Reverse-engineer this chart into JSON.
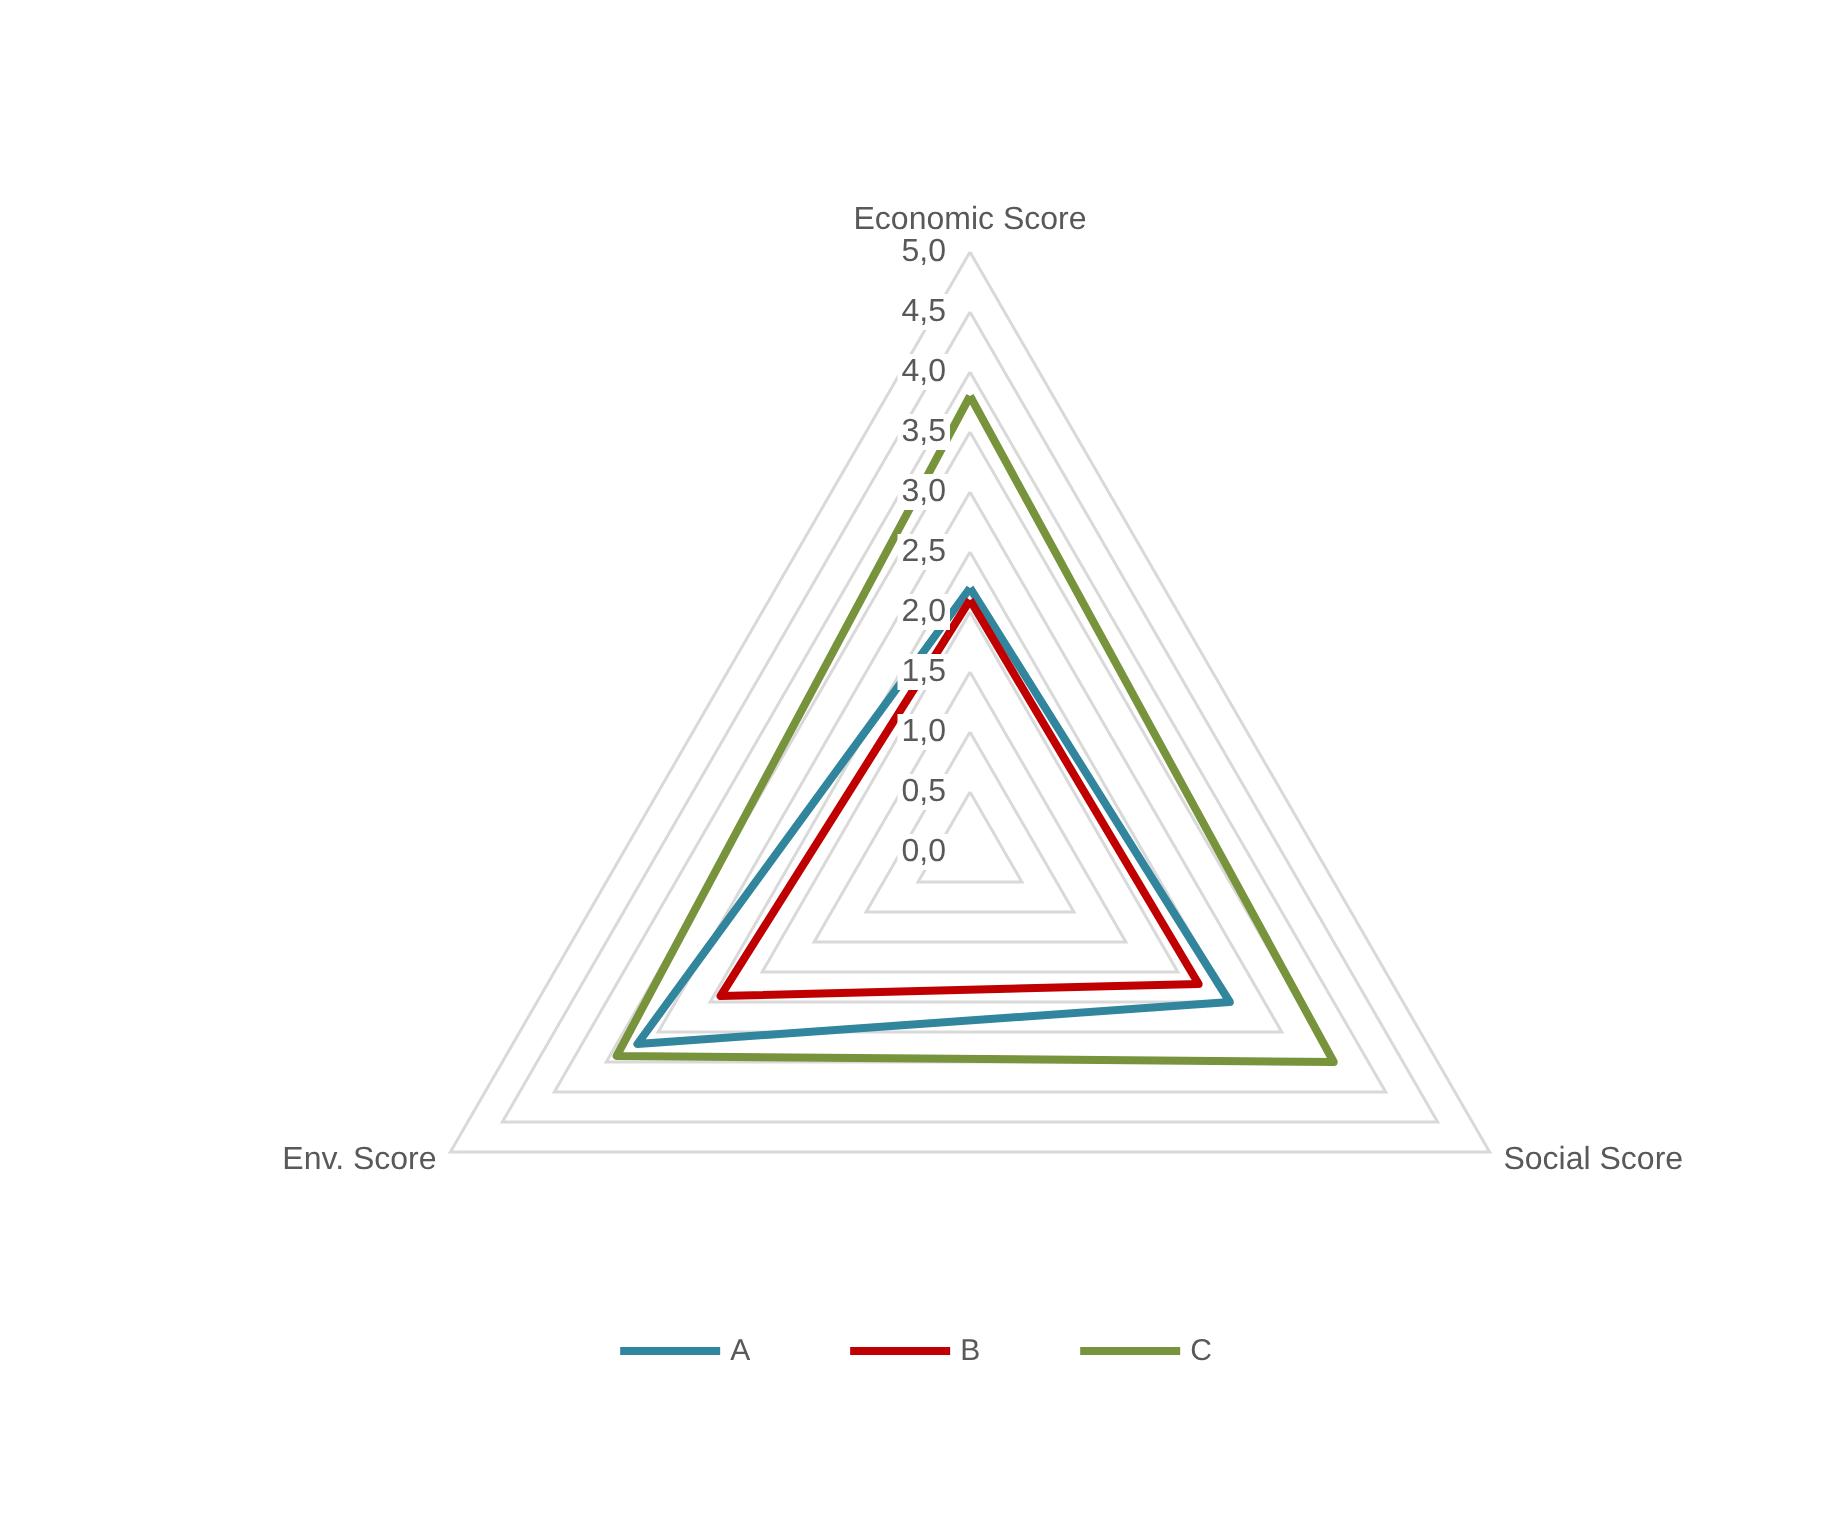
{
  "chart_data": {
    "type": "radar",
    "categories": [
      "Economic Score",
      "Social Score",
      "Env. Score"
    ],
    "ylim": [
      0,
      5
    ],
    "yticks": [
      {
        "value": 0,
        "label": "0,0"
      },
      {
        "value": 0.5,
        "label": "0,5"
      },
      {
        "value": 1,
        "label": "1,0"
      },
      {
        "value": 1.5,
        "label": "1,5"
      },
      {
        "value": 2,
        "label": "2,0"
      },
      {
        "value": 2.5,
        "label": "2,5"
      },
      {
        "value": 3,
        "label": "3,0"
      },
      {
        "value": 3.5,
        "label": "3,5"
      },
      {
        "value": 4,
        "label": "4,0"
      },
      {
        "value": 4.5,
        "label": "4,5"
      },
      {
        "value": 5,
        "label": "5,0"
      }
    ],
    "series": [
      {
        "name": "A",
        "color": "#31859c",
        "values": [
          2.2,
          2.5,
          3.2
        ]
      },
      {
        "name": "B",
        "color": "#c00000",
        "values": [
          2.1,
          2.2,
          2.4
        ]
      },
      {
        "name": "C",
        "color": "#77933c",
        "values": [
          3.8,
          3.5,
          3.4
        ]
      }
    ],
    "grid": true,
    "legend": "bottom",
    "marker": "none",
    "line_style": "solid"
  }
}
